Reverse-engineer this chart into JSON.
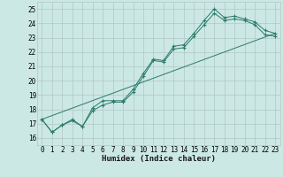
{
  "xlabel": "Humidex (Indice chaleur)",
  "background_color": "#cce8e4",
  "grid_color": "#b0c8c4",
  "line_color": "#2a7a6a",
  "xlim": [
    -0.5,
    23.5
  ],
  "ylim": [
    15.5,
    25.5
  ],
  "xticks": [
    0,
    1,
    2,
    3,
    4,
    5,
    6,
    7,
    8,
    9,
    10,
    11,
    12,
    13,
    14,
    15,
    16,
    17,
    18,
    19,
    20,
    21,
    22,
    23
  ],
  "yticks": [
    16,
    17,
    18,
    19,
    20,
    21,
    22,
    23,
    24,
    25
  ],
  "line1_x": [
    0,
    1,
    2,
    3,
    4,
    5,
    6,
    7,
    8,
    9,
    10,
    11,
    12,
    13,
    14,
    15,
    16,
    17,
    18,
    19,
    20,
    21,
    22,
    23
  ],
  "line1_y": [
    17.3,
    16.4,
    16.9,
    17.3,
    16.8,
    18.1,
    18.6,
    18.6,
    18.6,
    19.4,
    20.5,
    21.5,
    21.4,
    22.4,
    22.5,
    23.3,
    24.2,
    25.0,
    24.4,
    24.5,
    24.3,
    24.1,
    23.5,
    23.3
  ],
  "line2_x": [
    0,
    1,
    2,
    3,
    4,
    5,
    6,
    7,
    8,
    9,
    10,
    11,
    12,
    13,
    14,
    15,
    16,
    17,
    18,
    19,
    20,
    21,
    22,
    23
  ],
  "line2_y": [
    17.3,
    16.4,
    16.9,
    17.2,
    16.8,
    17.9,
    18.3,
    18.5,
    18.5,
    19.2,
    20.3,
    21.4,
    21.3,
    22.2,
    22.3,
    23.1,
    23.9,
    24.7,
    24.2,
    24.3,
    24.2,
    23.9,
    23.2,
    23.1
  ],
  "line3_x": [
    0,
    23
  ],
  "line3_y": [
    17.3,
    23.3
  ]
}
